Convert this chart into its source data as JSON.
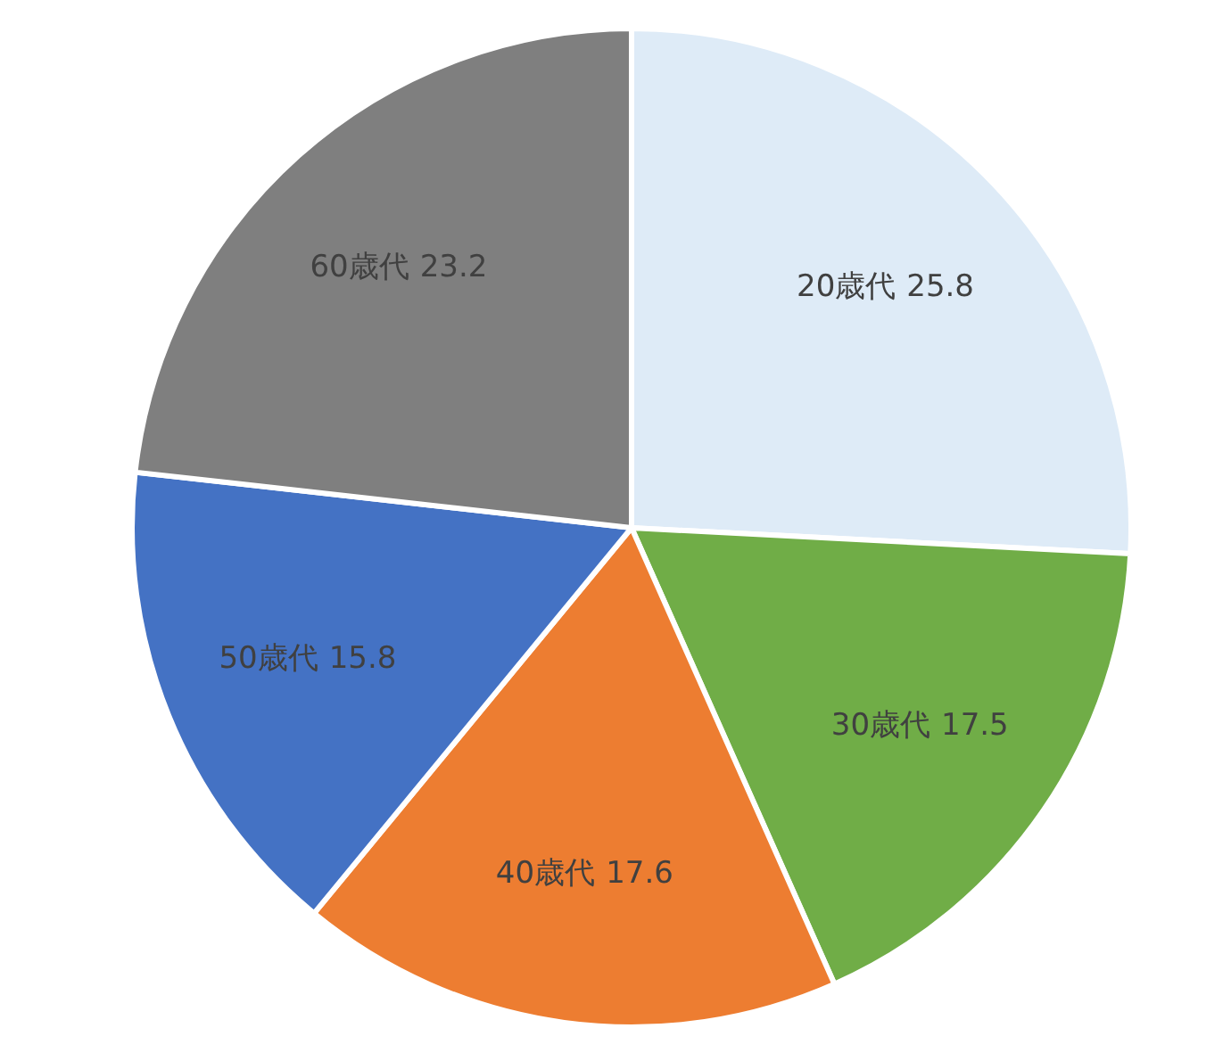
{
  "chart_data": {
    "type": "pie",
    "categories": [
      "20歳代",
      "30歳代",
      "40歳代",
      "50歳代",
      "60歳代"
    ],
    "values": [
      25.8,
      17.5,
      17.6,
      15.8,
      23.2
    ],
    "colors": [
      "#deebf7",
      "#70ad47",
      "#ed7d31",
      "#4472c4",
      "#7f7f7f"
    ],
    "data_labels": true
  }
}
